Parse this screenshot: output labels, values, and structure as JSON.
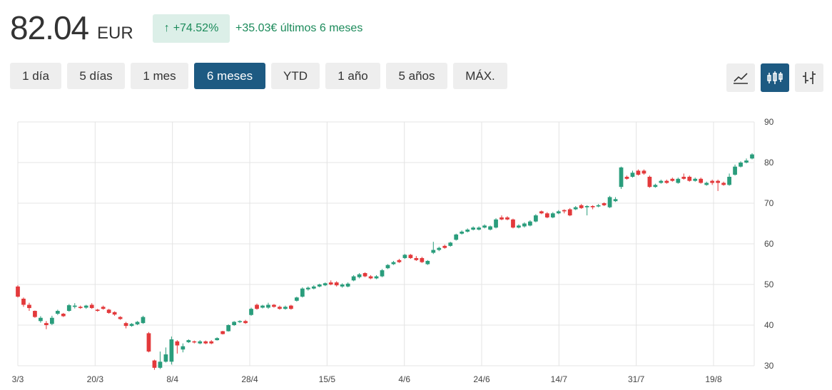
{
  "header": {
    "price": "82.04",
    "currency": "EUR",
    "change_pct": "+74.52%",
    "change_abs": "+35.03€ últimos 6 meses",
    "up_arrow_icon": "arrow-up-icon"
  },
  "ranges": [
    "1 día",
    "5 días",
    "1 mes",
    "6 meses",
    "YTD",
    "1 año",
    "5 años",
    "MÁX."
  ],
  "active_range": "6 meses",
  "tools": {
    "line_icon": "line-chart-icon",
    "candle_icon": "candlestick-icon",
    "ohlc_icon": "ohlc-bars-icon",
    "active": "candlestick-icon"
  },
  "colors": {
    "up": "#2a9d7c",
    "down": "#e3393b",
    "accent": "#1d5a82",
    "positive_text": "#1b8a5a"
  },
  "chart_data": {
    "type": "candlestick",
    "x_tick_labels": [
      "3/3",
      "20/3",
      "8/4",
      "28/4",
      "15/5",
      "4/6",
      "24/6",
      "14/7",
      "31/7",
      "19/8"
    ],
    "y_ticks": [
      30,
      40,
      50,
      60,
      70,
      80,
      90
    ],
    "ylim": [
      30,
      90
    ],
    "grid": true,
    "y_axis_side": "right",
    "candles": [
      [
        49.5,
        47.0,
        49.8,
        46.8
      ],
      [
        46.5,
        45.0,
        46.8,
        44.5
      ],
      [
        45.0,
        44.2,
        45.5,
        43.5
      ],
      [
        43.5,
        42.0,
        43.6,
        41.8
      ],
      [
        41.0,
        41.8,
        42.2,
        40.6
      ],
      [
        40.5,
        40.0,
        41.0,
        39.0
      ],
      [
        40.3,
        41.8,
        42.3,
        40.0
      ],
      [
        42.8,
        43.5,
        43.8,
        42.5
      ],
      [
        42.8,
        42.2,
        43.0,
        42.0
      ],
      [
        43.5,
        44.9,
        45.2,
        43.3
      ],
      [
        44.5,
        44.8,
        45.4,
        44.1
      ],
      [
        44.5,
        44.2,
        44.8,
        44.0
      ],
      [
        44.3,
        44.8,
        45.0,
        44.0
      ],
      [
        45.0,
        44.2,
        45.4,
        44.0
      ],
      [
        43.8,
        43.5,
        44.0,
        43.3
      ],
      [
        44.5,
        44.0,
        44.8,
        43.8
      ],
      [
        43.8,
        43.0,
        44.0,
        42.8
      ],
      [
        43.2,
        42.6,
        43.4,
        42.3
      ],
      [
        42.0,
        41.5,
        42.2,
        41.3
      ],
      [
        40.5,
        39.8,
        40.8,
        39.2
      ],
      [
        39.8,
        40.3,
        40.5,
        39.6
      ],
      [
        40.2,
        40.8,
        41.0,
        40.0
      ],
      [
        40.5,
        42.0,
        42.3,
        40.3
      ],
      [
        38.0,
        33.5,
        38.3,
        33.3
      ],
      [
        31.3,
        29.5,
        31.5,
        29.0
      ],
      [
        29.5,
        31.0,
        33.5,
        29.2
      ],
      [
        31.0,
        32.8,
        34.5,
        30.8
      ],
      [
        31.0,
        36.5,
        37.2,
        30.3
      ],
      [
        36.0,
        35.0,
        36.3,
        33.0
      ],
      [
        34.0,
        34.8,
        35.5,
        33.3
      ],
      [
        35.8,
        36.3,
        36.5,
        35.6
      ],
      [
        36.0,
        35.8,
        36.2,
        35.5
      ],
      [
        35.5,
        36.0,
        36.3,
        35.3
      ],
      [
        36.0,
        35.5,
        36.2,
        35.3
      ],
      [
        36.0,
        35.5,
        36.3,
        35.3
      ],
      [
        36.3,
        36.8,
        37.0,
        36.2
      ],
      [
        38.5,
        37.8,
        38.6,
        37.7
      ],
      [
        38.5,
        40.0,
        40.2,
        38.4
      ],
      [
        40.0,
        40.8,
        41.0,
        39.8
      ],
      [
        40.8,
        41.0,
        41.2,
        40.5
      ],
      [
        41.0,
        40.5,
        41.3,
        40.3
      ],
      [
        42.5,
        44.0,
        44.3,
        42.3
      ],
      [
        45.0,
        44.0,
        45.3,
        43.8
      ],
      [
        44.3,
        44.8,
        45.0,
        44.1
      ],
      [
        44.3,
        45.0,
        45.5,
        44.0
      ],
      [
        45.0,
        44.5,
        45.2,
        44.3
      ],
      [
        44.5,
        44.0,
        44.8,
        43.8
      ],
      [
        44.0,
        44.5,
        44.8,
        43.8
      ],
      [
        44.8,
        44.0,
        45.0,
        43.8
      ],
      [
        46.0,
        46.8,
        47.0,
        45.8
      ],
      [
        47.0,
        49.0,
        49.3,
        46.8
      ],
      [
        48.8,
        49.2,
        49.5,
        48.5
      ],
      [
        49.0,
        49.5,
        49.8,
        48.8
      ],
      [
        49.5,
        50.0,
        50.2,
        49.3
      ],
      [
        49.8,
        50.3,
        50.5,
        49.6
      ],
      [
        50.5,
        50.0,
        51.0,
        49.8
      ],
      [
        50.5,
        49.8,
        50.8,
        49.5
      ],
      [
        49.5,
        50.0,
        50.3,
        49.2
      ],
      [
        49.5,
        50.2,
        50.5,
        49.3
      ],
      [
        51.0,
        52.0,
        52.3,
        50.8
      ],
      [
        51.8,
        52.5,
        52.8,
        51.5
      ],
      [
        52.8,
        52.0,
        53.0,
        51.8
      ],
      [
        52.0,
        51.5,
        52.3,
        51.3
      ],
      [
        51.5,
        52.0,
        52.3,
        51.3
      ],
      [
        52.0,
        53.5,
        53.8,
        51.8
      ],
      [
        54.0,
        54.8,
        55.0,
        53.8
      ],
      [
        55.0,
        55.5,
        55.8,
        54.8
      ],
      [
        56.0,
        55.5,
        56.3,
        55.3
      ],
      [
        56.5,
        57.3,
        57.5,
        56.3
      ],
      [
        57.3,
        56.5,
        57.5,
        56.3
      ],
      [
        56.5,
        56.0,
        57.0,
        55.8
      ],
      [
        56.5,
        55.5,
        56.8,
        55.3
      ],
      [
        55.0,
        55.8,
        56.0,
        54.8
      ],
      [
        57.8,
        58.5,
        60.5,
        57.5
      ],
      [
        58.5,
        59.0,
        59.3,
        58.2
      ],
      [
        59.5,
        59.0,
        59.8,
        58.8
      ],
      [
        59.5,
        60.3,
        60.5,
        59.3
      ],
      [
        61.0,
        62.3,
        62.5,
        60.8
      ],
      [
        62.5,
        63.0,
        63.3,
        62.3
      ],
      [
        63.0,
        63.5,
        63.8,
        62.8
      ],
      [
        63.5,
        64.0,
        64.3,
        63.3
      ],
      [
        63.5,
        64.0,
        64.3,
        63.3
      ],
      [
        64.0,
        64.5,
        64.8,
        63.8
      ],
      [
        63.5,
        64.3,
        64.5,
        63.3
      ],
      [
        64.0,
        66.0,
        66.3,
        63.8
      ],
      [
        66.5,
        66.0,
        67.0,
        65.8
      ],
      [
        66.5,
        66.0,
        66.8,
        65.8
      ],
      [
        66.0,
        64.0,
        66.2,
        63.8
      ],
      [
        64.0,
        64.5,
        64.8,
        63.8
      ],
      [
        64.3,
        65.0,
        65.3,
        64.0
      ],
      [
        64.5,
        65.5,
        65.8,
        64.3
      ],
      [
        65.5,
        67.0,
        67.3,
        65.3
      ],
      [
        68.0,
        67.5,
        68.2,
        67.3
      ],
      [
        67.5,
        66.5,
        67.8,
        66.3
      ],
      [
        66.5,
        67.5,
        67.8,
        66.3
      ],
      [
        67.5,
        68.0,
        68.3,
        67.3
      ],
      [
        68.3,
        68.0,
        68.5,
        67.5
      ],
      [
        68.5,
        67.0,
        68.8,
        66.8
      ],
      [
        68.5,
        69.0,
        69.3,
        68.3
      ],
      [
        69.5,
        68.8,
        69.8,
        68.6
      ],
      [
        69.0,
        69.3,
        69.5,
        67.0
      ],
      [
        69.3,
        69.0,
        69.5,
        68.5
      ],
      [
        69.2,
        69.5,
        69.8,
        69.0
      ],
      [
        70.0,
        69.5,
        70.2,
        69.3
      ],
      [
        69.0,
        71.5,
        71.8,
        68.8
      ],
      [
        70.5,
        71.0,
        71.5,
        70.3
      ],
      [
        74.0,
        78.8,
        79.0,
        73.5
      ],
      [
        76.5,
        76.0,
        76.8,
        75.8
      ],
      [
        76.5,
        77.5,
        78.0,
        76.3
      ],
      [
        78.0,
        77.0,
        78.3,
        76.8
      ],
      [
        78.0,
        77.3,
        78.3,
        77.0
      ],
      [
        76.5,
        74.0,
        76.8,
        73.8
      ],
      [
        74.0,
        74.5,
        74.8,
        73.8
      ],
      [
        75.0,
        75.5,
        75.8,
        74.8
      ],
      [
        75.5,
        75.0,
        75.8,
        74.8
      ],
      [
        76.0,
        75.5,
        76.3,
        75.3
      ],
      [
        75.0,
        76.0,
        76.3,
        74.8
      ],
      [
        76.5,
        76.0,
        77.3,
        75.8
      ],
      [
        76.5,
        75.5,
        76.8,
        75.3
      ],
      [
        75.5,
        76.0,
        76.3,
        75.3
      ],
      [
        76.0,
        75.0,
        76.3,
        74.8
      ],
      [
        74.5,
        75.0,
        75.3,
        74.3
      ],
      [
        75.5,
        75.0,
        75.8,
        74.5
      ],
      [
        75.5,
        75.0,
        75.8,
        73.0
      ],
      [
        75.0,
        74.5,
        75.3,
        74.3
      ],
      [
        74.5,
        76.5,
        77.3,
        74.3
      ],
      [
        77.0,
        79.0,
        79.5,
        76.8
      ],
      [
        79.0,
        80.0,
        80.3,
        78.8
      ],
      [
        80.0,
        80.5,
        81.0,
        79.8
      ],
      [
        81.0,
        82.0,
        82.3,
        80.8
      ]
    ]
  }
}
